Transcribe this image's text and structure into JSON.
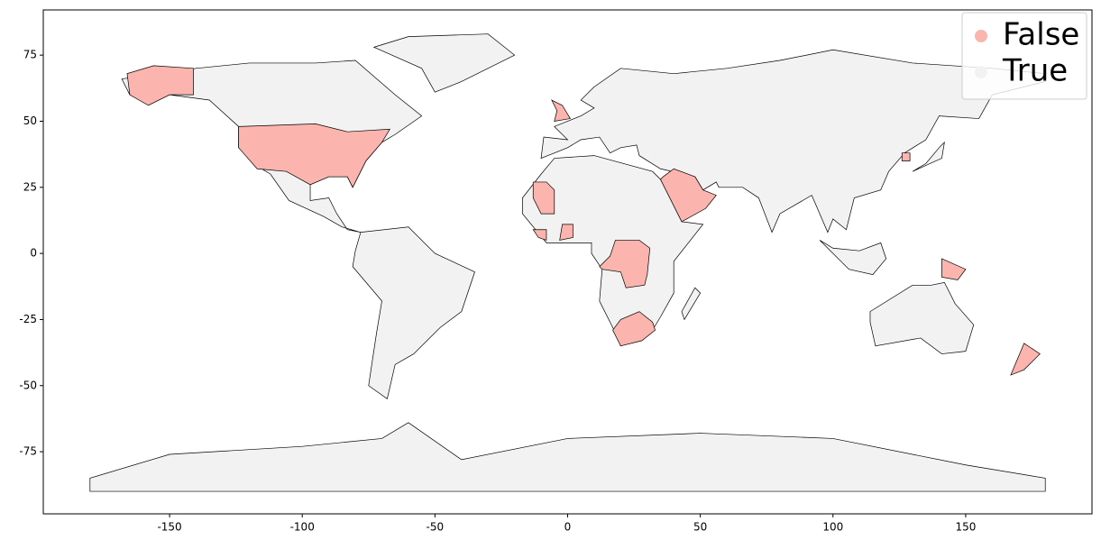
{
  "chart_data": {
    "type": "map",
    "series": [
      {
        "name": "False",
        "color": "#fbb4ae"
      },
      {
        "name": "True",
        "color": "#f2f2f2"
      }
    ],
    "legend": "upper right",
    "xlim": [
      -197.6,
      197.6
    ],
    "ylim": [
      -98.5,
      92.1
    ],
    "xticks": [
      -150,
      -100,
      -50,
      0,
      50,
      100,
      150
    ],
    "yticks": [
      -75,
      -50,
      -25,
      0,
      25,
      50,
      75
    ]
  }
}
